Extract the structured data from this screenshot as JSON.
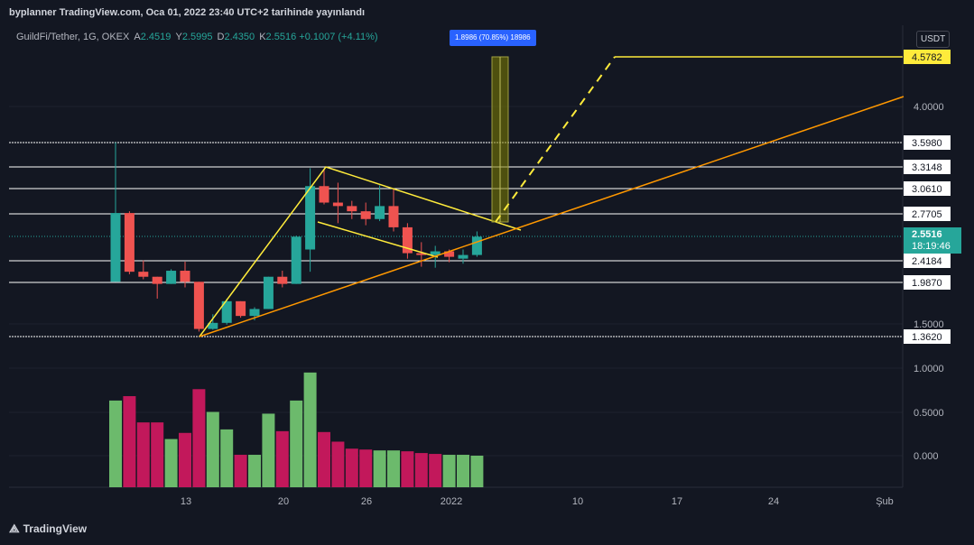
{
  "header": {
    "published_text": "byplanner TradingView.com, Oca 01, 2022 23:40 UTC+2 tarihinde yayınlandı"
  },
  "symbol": {
    "name": "GuildFi/Tether, 1G, OKEX",
    "open_label": "A",
    "open": "2.4519",
    "high_label": "Y",
    "high": "2.5995",
    "low_label": "D",
    "low": "2.4350",
    "close_label": "K",
    "close": "2.5516",
    "change": "+0.1007 (+4.11%)"
  },
  "currency": "USDT",
  "measure": {
    "label": "1.8986 (70.85%) 18986"
  },
  "footer": {
    "brand": "TradingView",
    "logo_icon": "tradingview-logo-icon"
  },
  "colors": {
    "background": "#131722",
    "up": "#26a69a",
    "down": "#ef5350",
    "volume_up": "#6cba6c",
    "volume_down": "#c2185b",
    "trendline_yellow": "#ffeb3b",
    "trendline_orange": "#ff9800",
    "measure_fill": "#808000"
  },
  "chart_data": {
    "type": "candlestick",
    "x_axis_ticks": [
      "13",
      "20",
      "26",
      "2022",
      "10",
      "17",
      "24",
      "Şub"
    ],
    "y_axis_ticks": [
      "4.0000",
      "1.5000",
      "1.0000",
      "0.5000",
      "0.000"
    ],
    "price_levels": [
      {
        "label": "4.5782",
        "value": 4.5782,
        "style": "yellow"
      },
      {
        "label": "3.5980",
        "value": 3.598,
        "style": "white"
      },
      {
        "label": "3.3148",
        "value": 3.3148,
        "style": "white"
      },
      {
        "label": "3.0610",
        "value": 3.061,
        "style": "white"
      },
      {
        "label": "2.7705",
        "value": 2.7705,
        "style": "white"
      },
      {
        "label": "2.4184",
        "value": 2.4184,
        "style": "white"
      },
      {
        "label": "1.9870",
        "value": 1.987,
        "style": "white"
      },
      {
        "label": "1.3620",
        "value": 1.362,
        "style": "white"
      }
    ],
    "current_price": {
      "label": "2.5516",
      "countdown": "18:19:46",
      "value": 2.5516
    },
    "candles": [
      {
        "o": 2.0,
        "h": 3.6,
        "l": 2.0,
        "c": 2.78
      },
      {
        "o": 2.78,
        "h": 2.8,
        "l": 2.15,
        "c": 2.2
      },
      {
        "o": 2.2,
        "h": 2.42,
        "l": 2.05,
        "c": 2.1
      },
      {
        "o": 2.1,
        "h": 2.1,
        "l": 1.8,
        "c": 1.97
      },
      {
        "o": 1.97,
        "h": 2.25,
        "l": 1.97,
        "c": 2.22
      },
      {
        "o": 2.22,
        "h": 2.4,
        "l": 1.93,
        "c": 2.0
      },
      {
        "o": 2.0,
        "h": 2.0,
        "l": 1.42,
        "c": 1.45
      },
      {
        "o": 1.45,
        "h": 1.62,
        "l": 1.44,
        "c": 1.52
      },
      {
        "o": 1.52,
        "h": 1.8,
        "l": 1.5,
        "c": 1.77
      },
      {
        "o": 1.77,
        "h": 1.77,
        "l": 1.58,
        "c": 1.6
      },
      {
        "o": 1.6,
        "h": 1.7,
        "l": 1.55,
        "c": 1.68
      },
      {
        "o": 1.68,
        "h": 2.1,
        "l": 1.68,
        "c": 2.1
      },
      {
        "o": 2.1,
        "h": 2.22,
        "l": 1.93,
        "c": 1.97
      },
      {
        "o": 1.97,
        "h": 2.56,
        "l": 1.97,
        "c": 2.55
      },
      {
        "o": 2.48,
        "h": 3.3,
        "l": 2.2,
        "c": 3.09
      },
      {
        "o": 3.09,
        "h": 3.28,
        "l": 2.88,
        "c": 2.9
      },
      {
        "o": 2.9,
        "h": 3.13,
        "l": 2.68,
        "c": 2.86
      },
      {
        "o": 2.86,
        "h": 2.92,
        "l": 2.72,
        "c": 2.8
      },
      {
        "o": 2.8,
        "h": 2.9,
        "l": 2.66,
        "c": 2.72
      },
      {
        "o": 2.72,
        "h": 3.1,
        "l": 2.7,
        "c": 2.86
      },
      {
        "o": 2.86,
        "h": 3.05,
        "l": 2.6,
        "c": 2.64
      },
      {
        "o": 2.64,
        "h": 2.68,
        "l": 2.43,
        "c": 2.46
      },
      {
        "o": 2.46,
        "h": 2.52,
        "l": 2.3,
        "c": 2.45
      },
      {
        "o": 2.45,
        "h": 2.5,
        "l": 2.28,
        "c": 2.47
      },
      {
        "o": 2.47,
        "h": 2.48,
        "l": 2.39,
        "c": 2.44
      },
      {
        "o": 2.43,
        "h": 2.48,
        "l": 2.36,
        "c": 2.45
      },
      {
        "o": 2.45,
        "h": 2.6,
        "l": 2.44,
        "c": 2.55
      }
    ],
    "volume": {
      "values": [
        0.63,
        0.68,
        0.38,
        0.38,
        0.19,
        0.26,
        0.76,
        0.5,
        0.3,
        0.01,
        0.01,
        0.48,
        0.28,
        0.63,
        0.95,
        0.27,
        0.16,
        0.08,
        0.07,
        0.06,
        0.06,
        0.05,
        0.03,
        0.02,
        0.01,
        0.01,
        0.0
      ],
      "direction": [
        "up",
        "down",
        "down",
        "down",
        "up",
        "down",
        "down",
        "up",
        "up",
        "down",
        "up",
        "up",
        "down",
        "up",
        "up",
        "down",
        "down",
        "down",
        "down",
        "up",
        "up",
        "down",
        "down",
        "down",
        "up",
        "up",
        "up"
      ]
    }
  }
}
